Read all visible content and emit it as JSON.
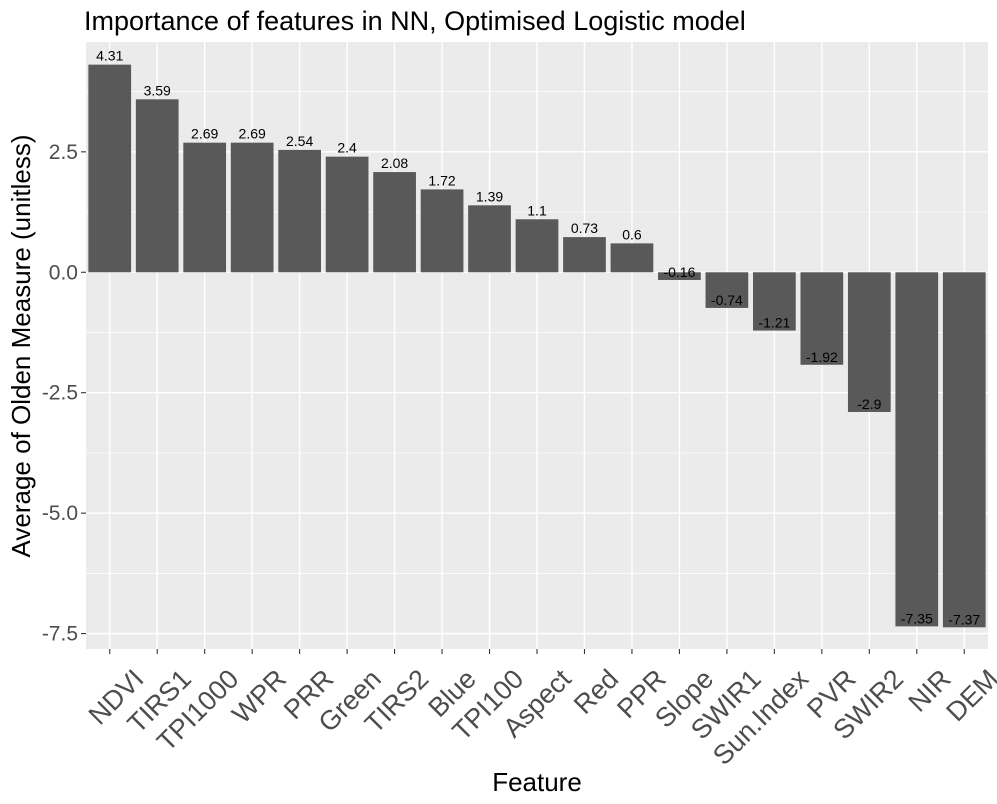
{
  "chart_data": {
    "type": "bar",
    "title": "Importance of features in NN, Optimised Logistic model",
    "xlabel": "Feature",
    "ylabel": "Average of Olden Measure (unitless)",
    "categories": [
      "NDVI",
      "TIRS1",
      "TPI1000",
      "WPR",
      "PRR",
      "Green",
      "TIRS2",
      "Blue",
      "TPI100",
      "Aspect",
      "Red",
      "PPR",
      "Slope",
      "SWIR1",
      "Sun.Index",
      "PVR",
      "SWIR2",
      "NIR",
      "DEM"
    ],
    "values": [
      4.31,
      3.59,
      2.69,
      2.69,
      2.54,
      2.4,
      2.08,
      1.72,
      1.39,
      1.1,
      0.73,
      0.6,
      -0.16,
      -0.74,
      -1.21,
      -1.92,
      -2.9,
      -7.35,
      -7.37
    ],
    "value_labels": [
      "4.31",
      "3.59",
      "2.69",
      "2.69",
      "2.54",
      "2.4",
      "2.08",
      "1.72",
      "1.39",
      "1.1",
      "0.73",
      "0.6",
      "-0.16",
      "-0.74",
      "-1.21",
      "-1.92",
      "-2.9",
      "-7.35",
      "-7.37"
    ],
    "yticks": [
      2.5,
      0.0,
      -2.5,
      -5.0,
      -7.5
    ],
    "ytick_labels": [
      "2.5",
      "0.0",
      "-2.5",
      "-5.0",
      "-7.5"
    ],
    "ylim": [
      -7.82,
      4.78
    ],
    "grid": true,
    "colors": {
      "bar": "#595959",
      "panel": "#ebebeb",
      "grid": "#ffffff",
      "tick_text": "#4d4d4d"
    }
  }
}
